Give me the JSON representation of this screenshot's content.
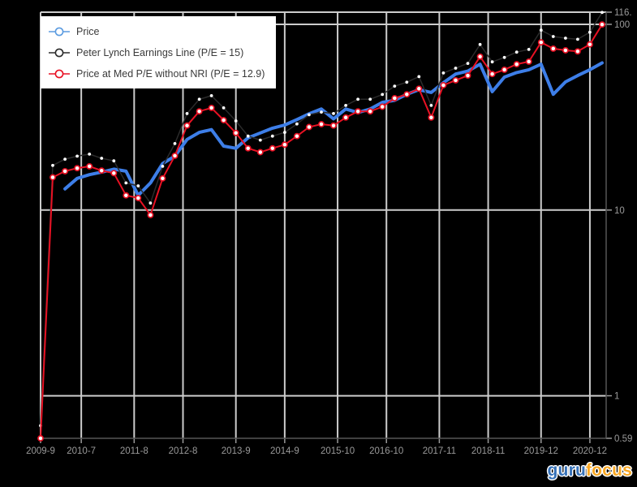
{
  "chart_data": {
    "type": "line",
    "title": "",
    "xlabel": "",
    "ylabel": "",
    "y_scale": "log",
    "ylim": [
      0.59,
      116.3
    ],
    "xlim_months": [
      0,
      139
    ],
    "grid": true,
    "legend_position": "top-left",
    "background": "#000000",
    "grid_color": "#cccccc",
    "axis_color": "#555555",
    "tick_color": "#999999",
    "label_color": "#9a9a9a",
    "x_tick_labels": [
      "2009-9",
      "2010-7",
      "2011-8",
      "2012-8",
      "2013-9",
      "2014-9",
      "2015-10",
      "2016-10",
      "2017-11",
      "2018-11",
      "2019-12",
      "2020-12"
    ],
    "y_ticks": [
      116.3,
      100,
      10,
      1,
      0.59
    ],
    "y_tick_labels": [
      "116.",
      "100",
      "10",
      "1",
      "0.59"
    ],
    "categories": [
      "2009-9",
      "2009-12",
      "2010-3",
      "2010-6",
      "2010-9",
      "2010-12",
      "2011-3",
      "2011-6",
      "2011-9",
      "2011-12",
      "2012-3",
      "2012-6",
      "2012-9",
      "2012-12",
      "2013-3",
      "2013-6",
      "2013-9",
      "2013-12",
      "2014-3",
      "2014-6",
      "2014-9",
      "2014-12",
      "2015-3",
      "2015-6",
      "2015-9",
      "2015-12",
      "2016-3",
      "2016-6",
      "2016-9",
      "2016-12",
      "2017-3",
      "2017-6",
      "2017-9",
      "2017-12",
      "2018-3",
      "2018-6",
      "2018-9",
      "2018-12",
      "2019-3",
      "2019-6",
      "2019-9",
      "2019-12",
      "2020-3",
      "2020-6",
      "2020-9",
      "2020-12",
      "2021-3"
    ],
    "series": [
      {
        "name": "Price",
        "color": "#3d7ee8",
        "legend_color": "#5b9be0",
        "style": "thick-line",
        "values": [
          null,
          null,
          13.0,
          14.8,
          15.5,
          16.0,
          16.6,
          16.2,
          12.0,
          14.0,
          17.8,
          19.5,
          24.0,
          26.2,
          27.1,
          22.1,
          21.5,
          24.5,
          26.0,
          27.6,
          28.7,
          30.7,
          33.0,
          35.0,
          31.0,
          35.0,
          33.5,
          35.0,
          38.0,
          39.0,
          42.0,
          44.5,
          43.0,
          48.5,
          54.0,
          56.0,
          61.0,
          43.4,
          52.0,
          55.0,
          57.0,
          61.0,
          42.0,
          49.0,
          53.0,
          57.0,
          62.0
        ]
      },
      {
        "name": "Peter Lynch Earnings Line (P/E = 15)",
        "color": "#2b2b2b",
        "legend_color": "#2b2b2b",
        "marker_fill": "#ffffff",
        "style": "dark-line-white-dots",
        "values": [
          0.69,
          17.4,
          18.8,
          19.5,
          20.0,
          19.0,
          18.4,
          14.0,
          13.5,
          10.9,
          17.2,
          22.8,
          33.1,
          39.5,
          41.3,
          35.5,
          30.2,
          25.0,
          23.8,
          25.0,
          26.2,
          29.1,
          32.6,
          33.7,
          33.1,
          36.6,
          39.5,
          39.5,
          41.9,
          46.5,
          48.8,
          52.3,
          36.6,
          54.7,
          58.1,
          61.6,
          77.9,
          62.8,
          66.3,
          70.9,
          73.3,
          93.0,
          86.0,
          84.3,
          83.1,
          90.7,
          116.0
        ]
      },
      {
        "name": "Price at Med P/E without NRI (P/E = 12.9)",
        "color": "#e81123",
        "legend_color": "#e81123",
        "marker_fill": "#ffffff",
        "style": "line-open-markers",
        "values": [
          0.59,
          15.0,
          16.2,
          16.8,
          17.2,
          16.3,
          15.8,
          12.0,
          11.6,
          9.4,
          14.8,
          19.6,
          28.5,
          34.0,
          35.5,
          30.5,
          26.0,
          21.5,
          20.5,
          21.5,
          22.5,
          25.0,
          28.0,
          29.0,
          28.5,
          31.5,
          34.0,
          34.0,
          36.0,
          40.0,
          42.0,
          45.0,
          31.5,
          47.0,
          50.0,
          53.0,
          67.0,
          54.0,
          57.0,
          61.0,
          63.0,
          80.0,
          74.0,
          72.5,
          71.5,
          78.0,
          99.8
        ]
      }
    ]
  },
  "logo": {
    "guru": "guru",
    "focus": "focus"
  }
}
